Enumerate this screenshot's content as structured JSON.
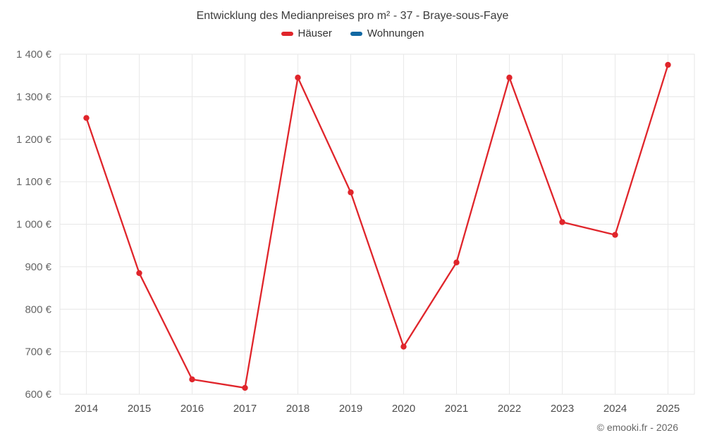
{
  "title": "Entwicklung des Medianpreises pro m² - 37 - Braye-sous-Faye",
  "legend": [
    {
      "label": "Häuser",
      "color": "#e0252b"
    },
    {
      "label": "Wohnungen",
      "color": "#1268a3"
    }
  ],
  "watermark": "© emooki.fr - 2026",
  "chart_data": {
    "type": "line",
    "title": "Entwicklung des Medianpreises pro m² - 37 - Braye-sous-Faye",
    "categories": [
      "2014",
      "2015",
      "2016",
      "2017",
      "2018",
      "2019",
      "2020",
      "2021",
      "2022",
      "2023",
      "2024",
      "2025"
    ],
    "series": [
      {
        "name": "Häuser",
        "color": "#e0252b",
        "values": [
          1250,
          885,
          635,
          615,
          1345,
          1075,
          712,
          910,
          1345,
          1005,
          975,
          1375
        ]
      },
      {
        "name": "Wohnungen",
        "color": "#1268a3",
        "values": []
      }
    ],
    "xlabel": "",
    "ylabel": "",
    "ylim": [
      600,
      1400
    ],
    "ytick_values": [
      600,
      700,
      800,
      900,
      1000,
      1100,
      1200,
      1300,
      1400
    ],
    "ytick_labels": [
      "600 €",
      "700 €",
      "800 €",
      "900 €",
      "1 000 €",
      "1 100 €",
      "1 200 €",
      "1 300 €",
      "1 400 €"
    ],
    "grid": true,
    "legend_position": "top"
  }
}
